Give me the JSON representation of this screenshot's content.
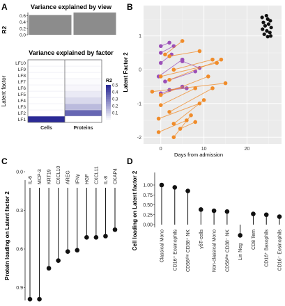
{
  "panel_labels": [
    "A",
    "B",
    "C",
    "D"
  ],
  "chart_data": [
    {
      "panel": "A-top",
      "type": "bar",
      "title": "Variance explained by view",
      "ylabel": "R2",
      "categories": [
        "Cells",
        "Proteins"
      ],
      "values": [
        0.62,
        0.7
      ],
      "ylim": [
        0,
        0.7
      ],
      "yticks": [
        "0.0",
        "0.2",
        "0.4",
        "0.6"
      ],
      "bar_color": "#8c8c8c"
    },
    {
      "panel": "A-bottom",
      "type": "heatmap",
      "title": "Variance explained by factor",
      "ylabel": "Latent factor",
      "xlabels": [
        "Cells",
        "Proteins"
      ],
      "ylabels": [
        "LF1",
        "LF2",
        "LF3",
        "LF4",
        "LF5",
        "LF6",
        "LF7",
        "LF8",
        "LF9",
        "LF10"
      ],
      "values": [
        [
          0.5,
          0.0
        ],
        [
          0.0,
          0.36
        ],
        [
          0.0,
          0.16
        ],
        [
          0.0,
          0.09
        ],
        [
          0.0,
          0.05
        ],
        [
          0.0,
          0.02
        ],
        [
          0.0,
          0.01
        ],
        [
          0.0,
          0.0
        ],
        [
          0.0,
          0.0
        ],
        [
          0.0,
          0.0
        ]
      ],
      "legend_title": "R2",
      "legend_ticks": [
        "0.5",
        "0.4",
        "0.3",
        "0.2",
        "0.1"
      ],
      "colors": {
        "low": "#ffffff",
        "high": "#2b2a96"
      }
    },
    {
      "panel": "B",
      "type": "scatter",
      "xlabel": "Days from admission",
      "ylabel": "Latent Factor 2",
      "xlim": [
        -4,
        28
      ],
      "ylim": [
        -2.2,
        1.9
      ],
      "xticks": [
        "0",
        "10",
        "20"
      ],
      "yticks": [
        "-2",
        "-1",
        "0",
        "1"
      ],
      "grid": true,
      "series": [
        {
          "color": "#9b4fb8",
          "segments": [
            [
              [
                0.0,
                0.7
              ],
              [
                2.0,
                0.8
              ]
            ],
            [
              [
                0.0,
                0.5
              ],
              [
                3.0,
                0.7
              ]
            ],
            [
              [
                0.0,
                0.2
              ],
              [
                2.5,
                0.45
              ]
            ],
            [
              [
                -0.5,
                -0.2
              ],
              [
                5.0,
                0.3
              ]
            ],
            [
              [
                5.0,
                0.25
              ],
              [
                9.0,
                0.05
              ]
            ],
            [
              [
                1.0,
                -0.35
              ],
              [
                8.0,
                -0.05
              ]
            ],
            [
              [
                2.0,
                -0.6
              ],
              [
                6.0,
                -0.55
              ]
            ],
            [
              [
                0.0,
                -0.7
              ],
              [
                5.0,
                -0.5
              ]
            ]
          ]
        },
        {
          "color": "#f08c2a",
          "segments": [
            [
              [
                1.0,
                0.45
              ],
              [
                5.0,
                0.85
              ]
            ],
            [
              [
                2.0,
                0.4
              ],
              [
                9.0,
                0.55
              ]
            ],
            [
              [
                3.0,
                0.0
              ],
              [
                12.0,
                0.3
              ]
            ],
            [
              [
                2.0,
                -0.3
              ],
              [
                14.0,
                0.3
              ]
            ],
            [
              [
                0.0,
                -0.2
              ],
              [
                13.0,
                0.2
              ]
            ],
            [
              [
                0.0,
                -0.75
              ],
              [
                11.0,
                -0.2
              ]
            ],
            [
              [
                -2.0,
                -0.65
              ],
              [
                15.0,
                -0.4
              ]
            ],
            [
              [
                0.0,
                -1.05
              ],
              [
                8.0,
                -0.55
              ]
            ],
            [
              [
                2.0,
                -1.25
              ],
              [
                12.0,
                -0.55
              ]
            ],
            [
              [
                3.0,
                -1.6
              ],
              [
                10.0,
                -0.9
              ]
            ],
            [
              [
                -0.5,
                -1.45
              ],
              [
                9.0,
                -1.0
              ]
            ],
            [
              [
                3.0,
                -2.0
              ],
              [
                7.0,
                -1.35
              ]
            ],
            [
              [
                4.5,
                -1.75
              ],
              [
                8.0,
                -1.55
              ]
            ],
            [
              [
                -0.5,
                -1.85
              ],
              [
                6.0,
                -1.5
              ]
            ]
          ]
        },
        {
          "color": "#111111",
          "points": [
            [
              23.5,
              1.55
            ],
            [
              24.5,
              1.6
            ],
            [
              24.8,
              1.5
            ],
            [
              25.4,
              1.45
            ],
            [
              23.8,
              1.4
            ],
            [
              25.0,
              1.35
            ],
            [
              24.2,
              1.3
            ],
            [
              25.6,
              1.25
            ],
            [
              23.6,
              1.2
            ],
            [
              24.6,
              1.15
            ],
            [
              25.3,
              1.1
            ],
            [
              24.0,
              1.05
            ],
            [
              24.8,
              0.98
            ],
            [
              25.5,
              1.0
            ]
          ]
        }
      ]
    },
    {
      "panel": "C",
      "type": "lollipop",
      "ylabel": "Protein loading on Latent factor 2",
      "categories": [
        "IL-6",
        "MCP-3",
        "KRT19",
        "CXCL10",
        "AREG",
        "IFNγ",
        "HGF",
        "CXCL11",
        "IL-8",
        "CKAP4"
      ],
      "values": [
        0.99,
        0.99,
        0.75,
        0.69,
        0.62,
        0.61,
        0.51,
        0.51,
        0.5,
        0.45
      ],
      "ylim": [
        1.0,
        0.0
      ],
      "yticks": [
        "0.0",
        "0.3",
        "0.6",
        "0.9"
      ]
    },
    {
      "panel": "D",
      "type": "lollipop",
      "ylabel": "Cell loading on Latent factor 2",
      "categories": [
        "Classical Mono",
        "CD16⁺ Eosinophils",
        "CD56ᵈⁱᵐ CD38⁺ NK",
        "γδT-cells",
        "Non-classical Mono",
        "CD56ᵈⁱᵐ CD38⁻ NK",
        "Lin Neg",
        "CD8 Tem",
        "CD16⁺ Basophils",
        "CD16⁻ Eosinophils"
      ],
      "values": [
        1.0,
        0.94,
        0.85,
        0.38,
        0.35,
        0.33,
        -0.27,
        0.27,
        0.25,
        0.2
      ],
      "ylim": [
        -0.35,
        1.05
      ],
      "yticks": [
        "0.00",
        "0.25",
        "0.50",
        "0.75",
        "1.00"
      ]
    }
  ]
}
